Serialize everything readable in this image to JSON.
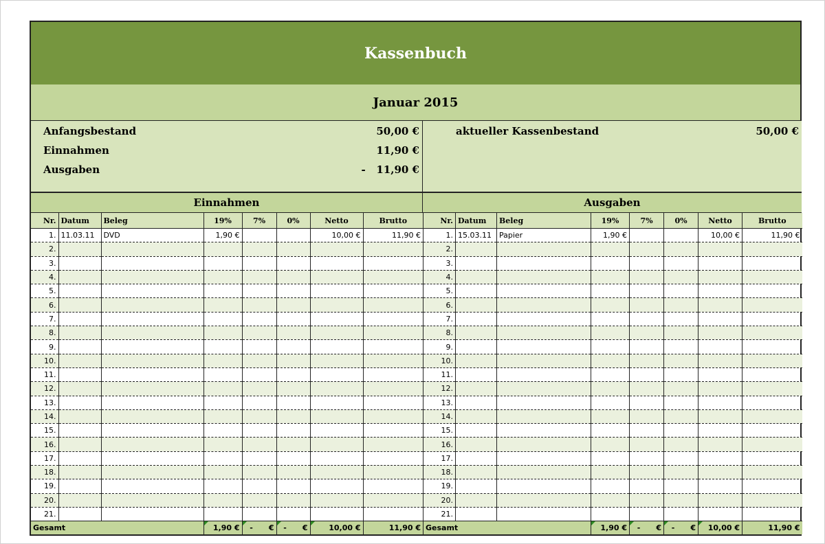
{
  "title": "Kassenbuch",
  "month": "Januar 2015",
  "summary": {
    "left": [
      {
        "label": "Anfangsbestand",
        "value": "50,00 €"
      },
      {
        "label": "Einnahmen",
        "value": "11,90 €"
      },
      {
        "label": "Ausgaben",
        "value": "-   11,90 €"
      }
    ],
    "right": {
      "label": "aktueller Kassenbestand",
      "value": "50,00 €"
    }
  },
  "colors": {
    "title_bg": "#76963f",
    "band": "#c3d69b",
    "light": "#d8e4bc",
    "alt_row": "#ebf1de"
  },
  "columns": [
    "Nr.",
    "Datum",
    "Beleg",
    "19%",
    "7%",
    "0%",
    "Netto",
    "Brutto"
  ],
  "einnahmen": {
    "heading": "Einnahmen",
    "rows": [
      [
        "1.",
        "11.03.11",
        "DVD",
        "1,90 €",
        "",
        "",
        "10,00 €",
        "11,90 €"
      ]
    ],
    "total": [
      "Gesamt",
      "",
      "",
      "1,90 €",
      "-      €",
      "-      €",
      "10,00 €",
      "11,90 €"
    ]
  },
  "ausgaben": {
    "heading": "Ausgaben",
    "rows": [
      [
        "1.",
        "15.03.11",
        "Papier",
        "1,90 €",
        "",
        "",
        "10,00 €",
        "11,90 €"
      ]
    ],
    "total": [
      "Gesamt",
      "",
      "",
      "1,90 €",
      "-      €",
      "-      €",
      "10,00 €",
      "11,90 €"
    ]
  },
  "row_numbers": [
    "1.",
    "2.",
    "3.",
    "4.",
    "5.",
    "6.",
    "7.",
    "8.",
    "9.",
    "10.",
    "11.",
    "12.",
    "13.",
    "14.",
    "15.",
    "16.",
    "17.",
    "18.",
    "19.",
    "20.",
    "21."
  ]
}
